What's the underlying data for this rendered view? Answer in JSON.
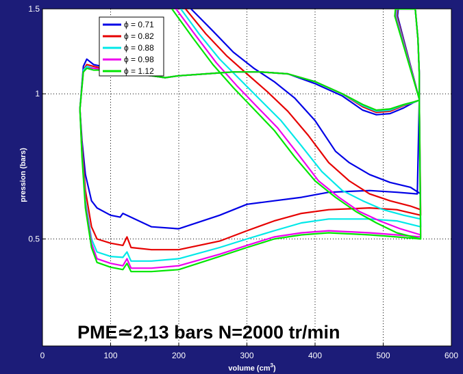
{
  "chart_data": {
    "type": "line",
    "title": "",
    "xlabel": "volume (cm",
    "xlabel_sup": "3",
    "xlabel_close": ")",
    "ylabel": "pression (bars)",
    "xlim": [
      0,
      600
    ],
    "ylim": [
      0.3,
      1.5
    ],
    "y_scale": "log",
    "grid": true,
    "legend_position": "top-left",
    "x_ticks": [
      "0",
      "100",
      "200",
      "300",
      "400",
      "500",
      "600"
    ],
    "y_ticks": [
      "0.5",
      "1",
      "1.5"
    ],
    "annotation": "PME≃2,13 bars N=2000 tr/min",
    "series": [
      {
        "name": "ϕ = 0.71",
        "color": "#0000e6",
        "loop": [
          [
            55,
            0.93
          ],
          [
            60,
            1.14
          ],
          [
            65,
            1.18
          ],
          [
            75,
            1.15
          ],
          [
            100,
            1.13
          ],
          [
            125,
            1.11
          ],
          [
            160,
            1.09
          ],
          [
            180,
            1.08
          ],
          [
            200,
            1.09
          ],
          [
            240,
            1.1
          ],
          [
            280,
            1.11
          ],
          [
            320,
            1.11
          ],
          [
            360,
            1.1
          ],
          [
            400,
            1.05
          ],
          [
            440,
            0.99
          ],
          [
            470,
            0.925
          ],
          [
            490,
            0.905
          ],
          [
            510,
            0.91
          ],
          [
            530,
            0.935
          ],
          [
            545,
            0.96
          ],
          [
            553,
            0.97
          ],
          [
            553,
            1.1
          ],
          [
            551,
            1.3
          ],
          [
            547,
            1.5
          ],
          [
            522,
            1.5
          ],
          [
            521,
            1.45
          ],
          [
            553,
            0.975
          ],
          [
            550,
            0.62
          ],
          [
            520,
            0.625
          ],
          [
            480,
            0.63
          ],
          [
            420,
            0.625
          ],
          [
            380,
            0.61
          ],
          [
            340,
            0.6
          ],
          [
            300,
            0.59
          ],
          [
            260,
            0.56
          ],
          [
            200,
            0.525
          ],
          [
            160,
            0.53
          ],
          [
            118,
            0.565
          ],
          [
            114,
            0.555
          ],
          [
            100,
            0.56
          ],
          [
            80,
            0.58
          ],
          [
            72,
            0.6
          ],
          [
            63,
            0.68
          ],
          [
            58,
            0.8
          ],
          [
            55,
            0.93
          ]
        ],
        "descent": [
          [
            218,
            1.5
          ],
          [
            250,
            1.35
          ],
          [
            280,
            1.22
          ],
          [
            310,
            1.13
          ],
          [
            340,
            1.06
          ],
          [
            370,
            0.98
          ],
          [
            400,
            0.88
          ],
          [
            430,
            0.76
          ],
          [
            450,
            0.72
          ],
          [
            480,
            0.68
          ],
          [
            510,
            0.655
          ],
          [
            540,
            0.64
          ],
          [
            555,
            0.62
          ]
        ]
      },
      {
        "name": "ϕ = 0.82",
        "color": "#e60000",
        "loop": [
          [
            55,
            0.93
          ],
          [
            60,
            1.12
          ],
          [
            65,
            1.15
          ],
          [
            75,
            1.14
          ],
          [
            100,
            1.12
          ],
          [
            125,
            1.1
          ],
          [
            160,
            1.09
          ],
          [
            180,
            1.08
          ],
          [
            200,
            1.09
          ],
          [
            240,
            1.1
          ],
          [
            280,
            1.11
          ],
          [
            320,
            1.11
          ],
          [
            360,
            1.1
          ],
          [
            400,
            1.06
          ],
          [
            440,
            1.0
          ],
          [
            470,
            0.94
          ],
          [
            490,
            0.915
          ],
          [
            510,
            0.92
          ],
          [
            530,
            0.945
          ],
          [
            545,
            0.96
          ],
          [
            553,
            0.97
          ],
          [
            553,
            1.1
          ],
          [
            551,
            1.3
          ],
          [
            547,
            1.5
          ],
          [
            521,
            1.5
          ],
          [
            520,
            1.45
          ],
          [
            553,
            0.975
          ],
          [
            555,
            0.56
          ],
          [
            520,
            0.575
          ],
          [
            480,
            0.58
          ],
          [
            420,
            0.575
          ],
          [
            380,
            0.565
          ],
          [
            340,
            0.545
          ],
          [
            300,
            0.52
          ],
          [
            260,
            0.495
          ],
          [
            200,
            0.475
          ],
          [
            160,
            0.475
          ],
          [
            130,
            0.48
          ],
          [
            124,
            0.505
          ],
          [
            118,
            0.485
          ],
          [
            100,
            0.49
          ],
          [
            80,
            0.5
          ],
          [
            72,
            0.53
          ],
          [
            63,
            0.63
          ],
          [
            58,
            0.78
          ],
          [
            55,
            0.93
          ]
        ],
        "descent": [
          [
            210,
            1.5
          ],
          [
            240,
            1.33
          ],
          [
            270,
            1.2
          ],
          [
            300,
            1.1
          ],
          [
            330,
            1.01
          ],
          [
            360,
            0.92
          ],
          [
            390,
            0.82
          ],
          [
            420,
            0.72
          ],
          [
            450,
            0.66
          ],
          [
            480,
            0.62
          ],
          [
            510,
            0.6
          ],
          [
            540,
            0.585
          ],
          [
            555,
            0.575
          ]
        ]
      },
      {
        "name": "ϕ = 0.88",
        "color": "#00e8e8",
        "loop": [
          [
            55,
            0.93
          ],
          [
            60,
            1.12
          ],
          [
            65,
            1.14
          ],
          [
            75,
            1.13
          ],
          [
            100,
            1.12
          ],
          [
            125,
            1.1
          ],
          [
            160,
            1.09
          ],
          [
            180,
            1.08
          ],
          [
            200,
            1.09
          ],
          [
            240,
            1.1
          ],
          [
            280,
            1.11
          ],
          [
            320,
            1.11
          ],
          [
            360,
            1.1
          ],
          [
            400,
            1.06
          ],
          [
            440,
            1.0
          ],
          [
            470,
            0.945
          ],
          [
            490,
            0.92
          ],
          [
            510,
            0.925
          ],
          [
            530,
            0.948
          ],
          [
            545,
            0.96
          ],
          [
            553,
            0.97
          ],
          [
            553,
            1.1
          ],
          [
            551,
            1.3
          ],
          [
            547,
            1.5
          ],
          [
            520,
            1.5
          ],
          [
            519,
            1.45
          ],
          [
            553,
            0.975
          ],
          [
            555,
            0.53
          ],
          [
            520,
            0.545
          ],
          [
            480,
            0.55
          ],
          [
            420,
            0.55
          ],
          [
            380,
            0.54
          ],
          [
            340,
            0.52
          ],
          [
            300,
            0.5
          ],
          [
            260,
            0.48
          ],
          [
            200,
            0.455
          ],
          [
            160,
            0.45
          ],
          [
            130,
            0.45
          ],
          [
            124,
            0.47
          ],
          [
            118,
            0.458
          ],
          [
            100,
            0.46
          ],
          [
            80,
            0.47
          ],
          [
            72,
            0.5
          ],
          [
            63,
            0.6
          ],
          [
            58,
            0.76
          ],
          [
            55,
            0.93
          ]
        ],
        "descent": [
          [
            203,
            1.5
          ],
          [
            230,
            1.33
          ],
          [
            260,
            1.18
          ],
          [
            290,
            1.07
          ],
          [
            320,
            0.97
          ],
          [
            350,
            0.88
          ],
          [
            380,
            0.78
          ],
          [
            410,
            0.69
          ],
          [
            440,
            0.63
          ],
          [
            470,
            0.6
          ],
          [
            500,
            0.575
          ],
          [
            530,
            0.56
          ],
          [
            555,
            0.55
          ]
        ]
      },
      {
        "name": "ϕ = 0.98",
        "color": "#ee00ee",
        "loop": [
          [
            55,
            0.93
          ],
          [
            60,
            1.11
          ],
          [
            65,
            1.13
          ],
          [
            75,
            1.13
          ],
          [
            100,
            1.12
          ],
          [
            125,
            1.1
          ],
          [
            160,
            1.09
          ],
          [
            180,
            1.08
          ],
          [
            200,
            1.09
          ],
          [
            240,
            1.1
          ],
          [
            280,
            1.11
          ],
          [
            320,
            1.11
          ],
          [
            360,
            1.1
          ],
          [
            400,
            1.06
          ],
          [
            440,
            1.0
          ],
          [
            470,
            0.95
          ],
          [
            490,
            0.925
          ],
          [
            510,
            0.93
          ],
          [
            530,
            0.95
          ],
          [
            545,
            0.962
          ],
          [
            553,
            0.97
          ],
          [
            553,
            1.1
          ],
          [
            551,
            1.3
          ],
          [
            547,
            1.5
          ],
          [
            519,
            1.5
          ],
          [
            518,
            1.45
          ],
          [
            553,
            0.975
          ],
          [
            555,
            0.505
          ],
          [
            520,
            0.51
          ],
          [
            480,
            0.515
          ],
          [
            420,
            0.52
          ],
          [
            380,
            0.515
          ],
          [
            340,
            0.505
          ],
          [
            300,
            0.485
          ],
          [
            260,
            0.465
          ],
          [
            200,
            0.44
          ],
          [
            160,
            0.435
          ],
          [
            130,
            0.435
          ],
          [
            124,
            0.455
          ],
          [
            118,
            0.44
          ],
          [
            100,
            0.445
          ],
          [
            80,
            0.455
          ],
          [
            72,
            0.49
          ],
          [
            63,
            0.59
          ],
          [
            58,
            0.75
          ],
          [
            55,
            0.93
          ]
        ],
        "descent": [
          [
            196,
            1.5
          ],
          [
            225,
            1.32
          ],
          [
            255,
            1.16
          ],
          [
            285,
            1.04
          ],
          [
            315,
            0.94
          ],
          [
            345,
            0.85
          ],
          [
            375,
            0.75
          ],
          [
            405,
            0.66
          ],
          [
            435,
            0.61
          ],
          [
            465,
            0.57
          ],
          [
            495,
            0.545
          ],
          [
            525,
            0.525
          ],
          [
            555,
            0.51
          ]
        ]
      },
      {
        "name": "ϕ = 1.12",
        "color": "#00e600",
        "loop": [
          [
            55,
            0.93
          ],
          [
            60,
            1.11
          ],
          [
            65,
            1.13
          ],
          [
            75,
            1.12
          ],
          [
            100,
            1.12
          ],
          [
            125,
            1.1
          ],
          [
            160,
            1.09
          ],
          [
            180,
            1.08
          ],
          [
            200,
            1.09
          ],
          [
            240,
            1.1
          ],
          [
            280,
            1.11
          ],
          [
            320,
            1.11
          ],
          [
            360,
            1.1
          ],
          [
            400,
            1.06
          ],
          [
            440,
            1.0
          ],
          [
            470,
            0.95
          ],
          [
            490,
            0.925
          ],
          [
            510,
            0.93
          ],
          [
            530,
            0.95
          ],
          [
            545,
            0.962
          ],
          [
            553,
            0.97
          ],
          [
            553,
            1.1
          ],
          [
            551,
            1.3
          ],
          [
            547,
            1.5
          ],
          [
            518,
            1.5
          ],
          [
            517,
            1.45
          ],
          [
            553,
            0.975
          ],
          [
            555,
            0.5
          ],
          [
            520,
            0.505
          ],
          [
            480,
            0.51
          ],
          [
            420,
            0.515
          ],
          [
            380,
            0.51
          ],
          [
            340,
            0.5
          ],
          [
            300,
            0.48
          ],
          [
            260,
            0.46
          ],
          [
            200,
            0.432
          ],
          [
            160,
            0.428
          ],
          [
            130,
            0.428
          ],
          [
            124,
            0.445
          ],
          [
            118,
            0.432
          ],
          [
            100,
            0.437
          ],
          [
            80,
            0.447
          ],
          [
            72,
            0.48
          ],
          [
            63,
            0.58
          ],
          [
            58,
            0.74
          ],
          [
            55,
            0.93
          ]
        ],
        "descent": [
          [
            190,
            1.5
          ],
          [
            220,
            1.31
          ],
          [
            250,
            1.15
          ],
          [
            280,
            1.03
          ],
          [
            310,
            0.93
          ],
          [
            340,
            0.84
          ],
          [
            370,
            0.74
          ],
          [
            400,
            0.66
          ],
          [
            430,
            0.61
          ],
          [
            460,
            0.57
          ],
          [
            490,
            0.54
          ],
          [
            520,
            0.515
          ],
          [
            555,
            0.5
          ]
        ]
      }
    ]
  }
}
